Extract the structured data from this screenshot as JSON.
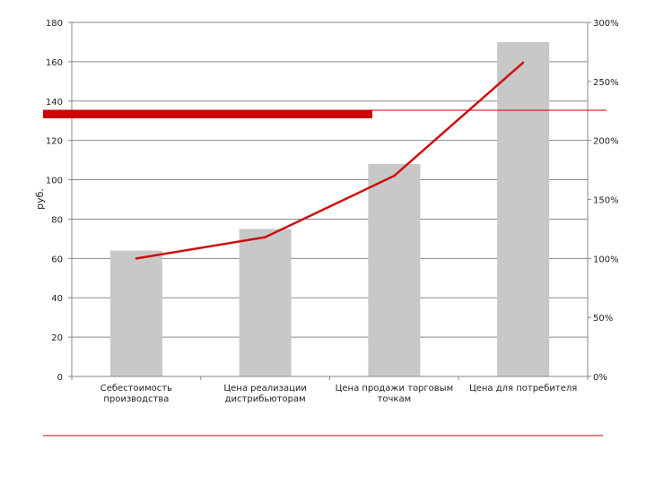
{
  "chart_data": {
    "type": "bar",
    "ylabel": "руб.",
    "categories": [
      [
        "Себестоимость",
        "производства"
      ],
      [
        "Цена реализации",
        "дистрибьюторам"
      ],
      [
        "Цена продажи торговым",
        "точкам"
      ],
      [
        "Цена для потребителя"
      ]
    ],
    "bars": {
      "values": [
        64,
        75,
        108,
        170
      ]
    },
    "line": {
      "values": [
        100,
        118,
        170,
        266
      ]
    },
    "ylim": [
      0,
      180
    ],
    "yticks": [
      0,
      20,
      40,
      60,
      80,
      100,
      120,
      140,
      160,
      180
    ],
    "y2lim": [
      0,
      300
    ],
    "y2ticks": [
      "0%",
      "50%",
      "100%",
      "150%",
      "200%",
      "250%",
      "300%"
    ],
    "y2values": [
      0,
      50,
      100,
      150,
      200,
      250,
      300
    ],
    "grid": true,
    "colors": {
      "bar": "#c8c8c8",
      "line": "#cc1111",
      "accent": "#cc0000",
      "grid": "#8a8a8a"
    }
  }
}
